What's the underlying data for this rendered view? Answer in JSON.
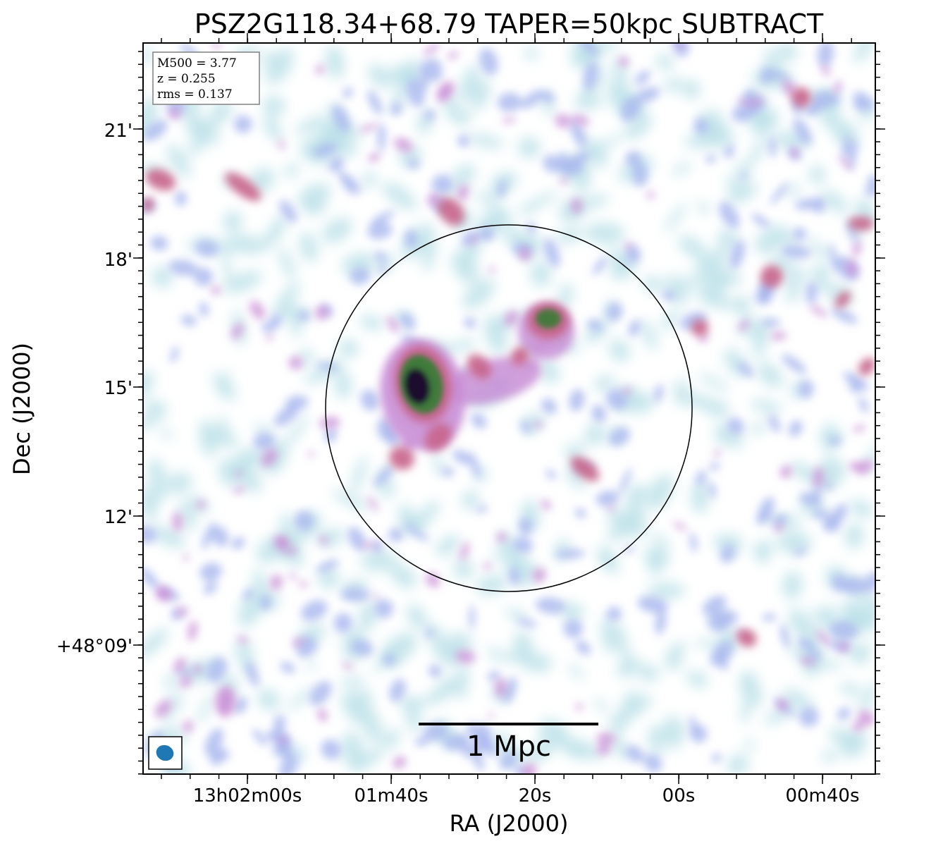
{
  "title": "PSZ2G118.34+68.79 TAPER=50kpc SUBTRACT",
  "xlabel": "RA (J2000)",
  "ylabel": "Dec (J2000)",
  "xticks": [
    "13h02m00s",
    "01m40s",
    "20s",
    "00s",
    "00m40s"
  ],
  "yticks": [
    "21'",
    "18'",
    "15'",
    "12'",
    "+48°09'"
  ],
  "info": {
    "m500": "M500 = 3.77",
    "z": "z = 0.255",
    "rms": "rms = 0.137"
  },
  "scalebar": {
    "label": "1 Mpc"
  },
  "colors": {
    "faint": "#bfe3ea",
    "low": "#a9b8ee",
    "mid": "#c98fd6",
    "high": "#c7648a",
    "peak": "#3f7a3a",
    "core": "#1a0f2e",
    "beam": "#1f77b4"
  }
}
